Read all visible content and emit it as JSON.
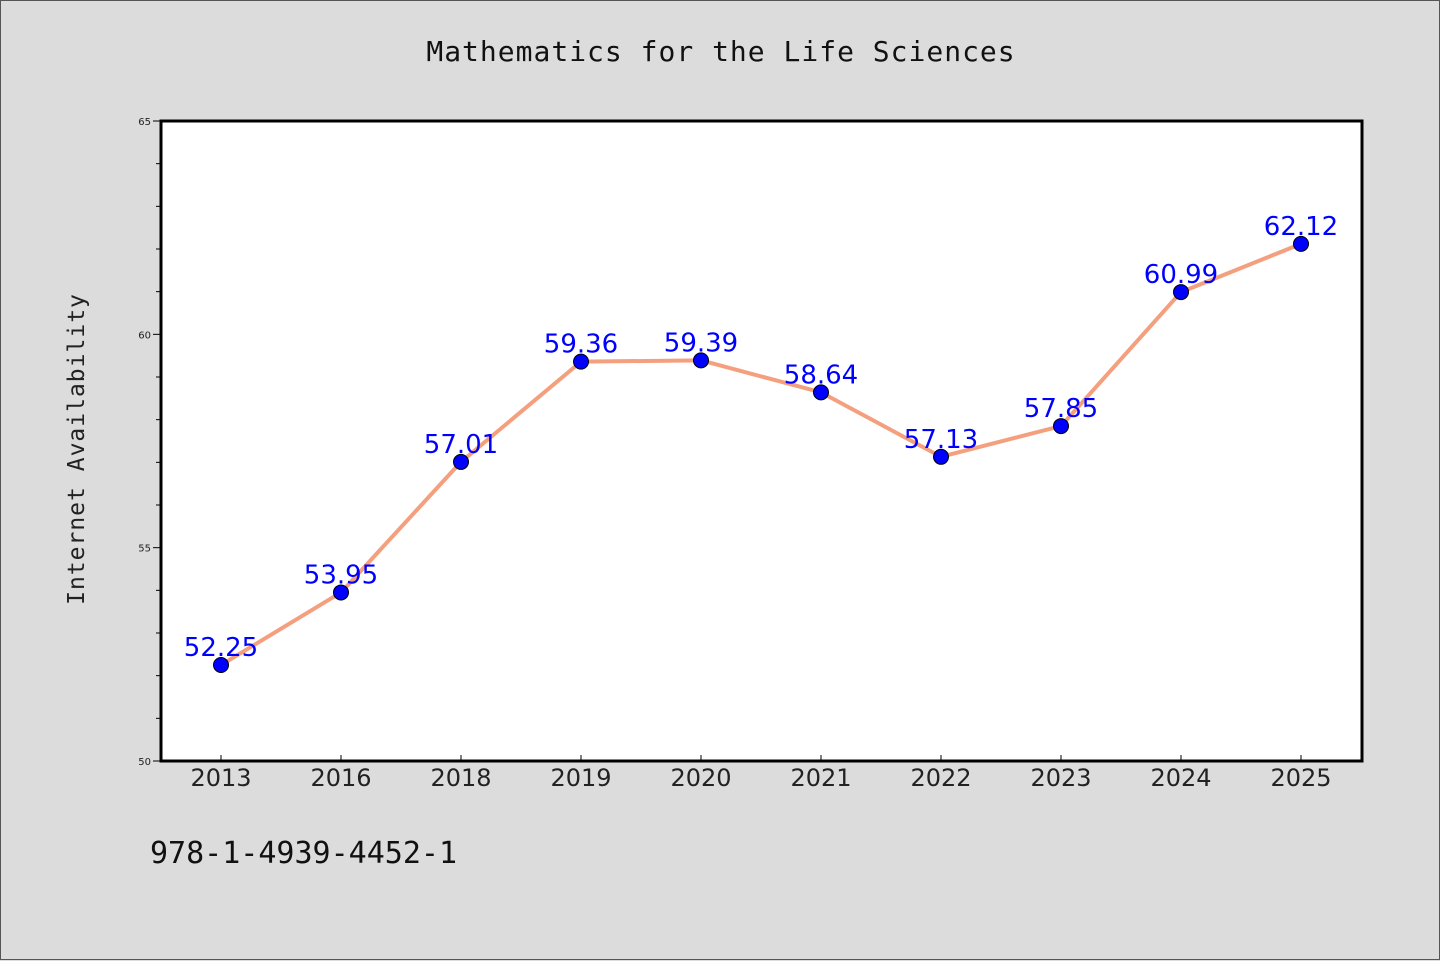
{
  "chart_data": {
    "type": "line",
    "title": "Mathematics for the Life Sciences",
    "xlabel": "",
    "ylabel": "Internet Availability",
    "categories": [
      "2013",
      "2016",
      "2018",
      "2019",
      "2020",
      "2021",
      "2022",
      "2023",
      "2024",
      "2025"
    ],
    "series": [
      {
        "values": [
          52.25,
          53.95,
          57.01,
          59.36,
          59.39,
          58.64,
          57.13,
          57.85,
          60.99,
          62.12
        ]
      }
    ],
    "data_labels": [
      "52.25",
      "53.95",
      "57.01",
      "59.36",
      "59.39",
      "58.64",
      "57.13",
      "57.85",
      "60.99",
      "62.12"
    ],
    "ylim": [
      50,
      65
    ],
    "yticks": [
      "50",
      "55",
      "60",
      "65"
    ],
    "grid": false,
    "legend": "none",
    "colors": {
      "line": "#f4a07e",
      "marker": "#0000ff",
      "data_label": "#0000ff",
      "plot_background": "#ffffff",
      "figure_background": "#dcdcdc"
    }
  },
  "footer": {
    "isbn": "978-1-4939-4452-1"
  }
}
